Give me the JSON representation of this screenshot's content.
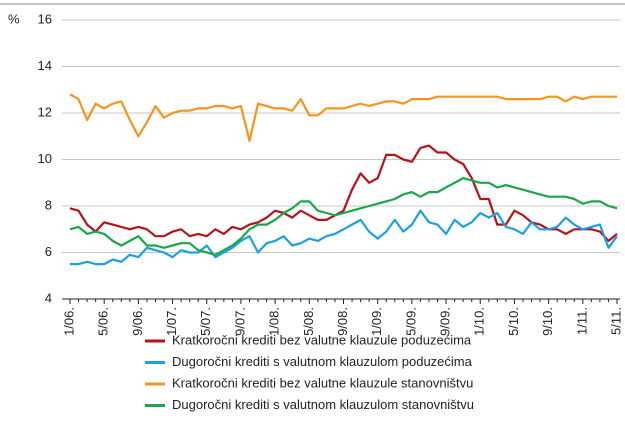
{
  "chart_data": {
    "type": "line",
    "y_label": "%",
    "categories": [
      "1/06.",
      null,
      null,
      null,
      "5/06.",
      null,
      null,
      null,
      "9/06.",
      null,
      null,
      null,
      "1/07.",
      null,
      null,
      null,
      "5/07.",
      null,
      null,
      null,
      "9/07.",
      null,
      null,
      null,
      "1/08.",
      null,
      null,
      null,
      "5/08.",
      null,
      null,
      null,
      "9/08.",
      null,
      null,
      null,
      "1/09.",
      null,
      null,
      null,
      "5/09.",
      null,
      null,
      null,
      "9/09.",
      null,
      null,
      null,
      "1/10.",
      null,
      null,
      null,
      "5/10.",
      null,
      null,
      null,
      "9/10.",
      null,
      null,
      null,
      "1/11.",
      null,
      null,
      null,
      "5/11."
    ],
    "series": [
      {
        "name": "Kratkoročni krediti bez valutne klauzule poduzećima",
        "color": "#b5121b",
        "values": [
          7.9,
          7.8,
          7.2,
          6.9,
          7.3,
          7.2,
          7.1,
          7.0,
          7.1,
          7.0,
          6.7,
          6.7,
          6.9,
          7.0,
          6.7,
          6.8,
          6.7,
          7.0,
          6.8,
          7.1,
          7.0,
          7.2,
          7.3,
          7.5,
          7.8,
          7.7,
          7.5,
          7.8,
          7.6,
          7.4,
          7.4,
          7.6,
          7.8,
          8.7,
          9.4,
          9.0,
          9.2,
          10.2,
          10.2,
          10.0,
          9.9,
          10.5,
          10.6,
          10.3,
          10.3,
          10.0,
          9.8,
          9.2,
          8.3,
          8.3,
          7.2,
          7.2,
          7.8,
          7.6,
          7.3,
          7.2,
          7.0,
          7.0,
          6.8,
          7.0,
          7.0,
          7.0,
          6.9,
          6.5,
          6.8
        ]
      },
      {
        "name": "Dugoročni krediti s valutnom klauzulom poduzećima",
        "color": "#1ba1e2",
        "values": [
          5.5,
          5.5,
          5.6,
          5.5,
          5.5,
          5.7,
          5.6,
          5.9,
          5.8,
          6.2,
          6.1,
          6.0,
          5.8,
          6.1,
          6.0,
          6.0,
          6.3,
          5.8,
          6.0,
          6.2,
          6.5,
          6.7,
          6.0,
          6.4,
          6.5,
          6.7,
          6.3,
          6.4,
          6.6,
          6.5,
          6.7,
          6.8,
          7.0,
          7.2,
          7.4,
          6.9,
          6.6,
          6.9,
          7.4,
          6.9,
          7.2,
          7.8,
          7.3,
          7.2,
          6.8,
          7.4,
          7.1,
          7.3,
          7.7,
          7.5,
          7.7,
          7.1,
          7.0,
          6.8,
          7.3,
          7.0,
          7.0,
          7.1,
          7.5,
          7.2,
          7.0,
          7.1,
          7.2,
          6.2,
          6.7
        ]
      },
      {
        "name": "Kratkoročni krediti bez valutne klauzule stanovništvu",
        "color": "#f7941d",
        "values": [
          12.8,
          12.6,
          11.7,
          12.4,
          12.2,
          12.4,
          12.5,
          11.7,
          11.0,
          11.6,
          12.3,
          11.8,
          12.0,
          12.1,
          12.1,
          12.2,
          12.2,
          12.3,
          12.3,
          12.2,
          12.3,
          10.8,
          12.4,
          12.3,
          12.2,
          12.2,
          12.1,
          12.6,
          11.9,
          11.9,
          12.2,
          12.2,
          12.2,
          12.3,
          12.4,
          12.3,
          12.4,
          12.5,
          12.5,
          12.4,
          12.6,
          12.6,
          12.6,
          12.7,
          12.7,
          12.7,
          12.7,
          12.7,
          12.7,
          12.7,
          12.7,
          12.6,
          12.6,
          12.6,
          12.6,
          12.6,
          12.7,
          12.7,
          12.5,
          12.7,
          12.6,
          12.7,
          12.7,
          12.7,
          12.7
        ]
      },
      {
        "name": "Dugoročni krediti s valutnom klauzulom stanovništvu",
        "color": "#1aa64a",
        "values": [
          7.0,
          7.1,
          6.8,
          6.9,
          6.8,
          6.5,
          6.3,
          6.5,
          6.7,
          6.3,
          6.3,
          6.2,
          6.3,
          6.4,
          6.4,
          6.1,
          6.0,
          5.9,
          6.1,
          6.3,
          6.6,
          7.0,
          7.2,
          7.2,
          7.4,
          7.7,
          7.9,
          8.2,
          8.2,
          7.8,
          7.7,
          7.6,
          7.7,
          7.8,
          7.9,
          8.0,
          8.1,
          8.2,
          8.3,
          8.5,
          8.6,
          8.4,
          8.6,
          8.6,
          8.8,
          9.0,
          9.2,
          9.1,
          9.0,
          9.0,
          8.8,
          8.9,
          8.8,
          8.7,
          8.6,
          8.5,
          8.4,
          8.4,
          8.4,
          8.3,
          8.1,
          8.2,
          8.2,
          8.0,
          7.9
        ]
      }
    ],
    "ylim": [
      4,
      16
    ],
    "yticks": [
      4,
      6,
      8,
      10,
      12,
      14,
      16
    ],
    "grid": true
  }
}
